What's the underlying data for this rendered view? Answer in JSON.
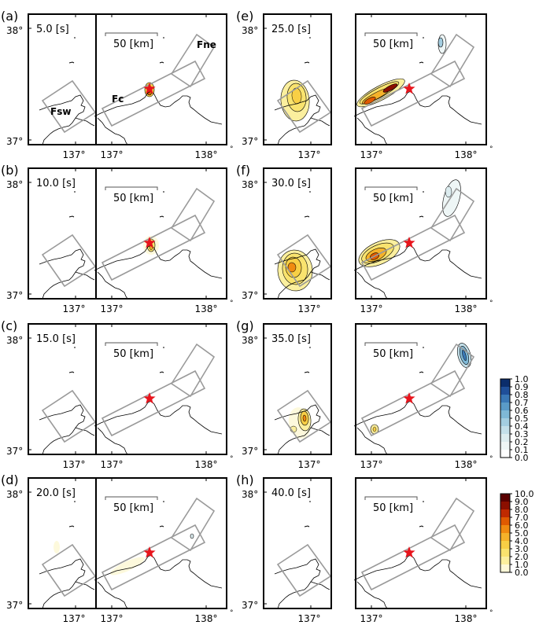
{
  "panels": [
    {
      "label": "(a)",
      "time": "5.0 [s]",
      "scale": "50 [km]",
      "lat_top": "38°",
      "lat_bottom": "37°",
      "lon_left": "137°",
      "lon_mid": "137°",
      "lon_right": "138°",
      "fault_labels": {
        "fsw": "Fsw",
        "fc": "Fc",
        "fne": "Fne"
      }
    },
    {
      "label": "(b)",
      "time": "10.0 [s]",
      "scale": "50 [km]",
      "lat_top": "38°",
      "lat_bottom": "37°",
      "lon_left": "137°",
      "lon_mid": "137°",
      "lon_right": "138°"
    },
    {
      "label": "(c)",
      "time": "15.0 [s]",
      "scale": "50 [km]",
      "lat_top": "38°",
      "lat_bottom": "37°",
      "lon_left": "137°",
      "lon_mid": "137°",
      "lon_right": "138°"
    },
    {
      "label": "(d)",
      "time": "20.0 [s]",
      "scale": "50 [km]",
      "lat_top": "38°",
      "lat_bottom": "37°",
      "lon_left": "137°",
      "lon_mid": "137°",
      "lon_right": "138°"
    },
    {
      "label": "(e)",
      "time": "25.0 [s]",
      "scale": "50 [km]",
      "lat_top": "38°",
      "lat_bottom": "37°",
      "lon_left": "137°",
      "lon_mid": "137°",
      "lon_right": "138°"
    },
    {
      "label": "(f)",
      "time": "30.0 [s]",
      "scale": "50 [km]",
      "lat_top": "38°",
      "lat_bottom": "37°",
      "lon_left": "137°",
      "lon_mid": "137°",
      "lon_right": "138°"
    },
    {
      "label": "(g)",
      "time": "35.0 [s]",
      "scale": "50 [km]",
      "lat_top": "38°",
      "lat_bottom": "37°",
      "lon_left": "137°",
      "lon_mid": "137°",
      "lon_right": "138°"
    },
    {
      "label": "(h)",
      "time": "40.0 [s]",
      "scale": "50 [km]",
      "lat_top": "38°",
      "lat_bottom": "37°",
      "lon_left": "137°",
      "lon_mid": "137°",
      "lon_right": "138°"
    }
  ],
  "colorbar_blue": {
    "ticks": [
      "1.0",
      "0.9",
      "0.8",
      "0.7",
      "0.6",
      "0.5",
      "0.4",
      "0.3",
      "0.2",
      "0.1",
      "0.0"
    ],
    "colors": [
      "#0b2d6b",
      "#1f4f99",
      "#3a78b6",
      "#5a9bc8",
      "#7fb8d6",
      "#a3cde0",
      "#c3dfe9",
      "#dcecef",
      "#eef6f6",
      "#ffffff"
    ]
  },
  "colorbar_warm": {
    "ticks": [
      "10.0",
      "9.0",
      "8.0",
      "7.0",
      "6.0",
      "5.0",
      "4.0",
      "3.0",
      "2.0",
      "1.0",
      "0.0"
    ],
    "colors": [
      "#5a0000",
      "#8b0f00",
      "#c02a00",
      "#e05a00",
      "#f08a10",
      "#f5b22a",
      "#f8cf45",
      "#f9e36e",
      "#fbef9e",
      "#fdf8d8"
    ]
  },
  "colors": {
    "fault": "#9a9a9a",
    "epicenter": "#e8141c",
    "coast": "#000000"
  }
}
